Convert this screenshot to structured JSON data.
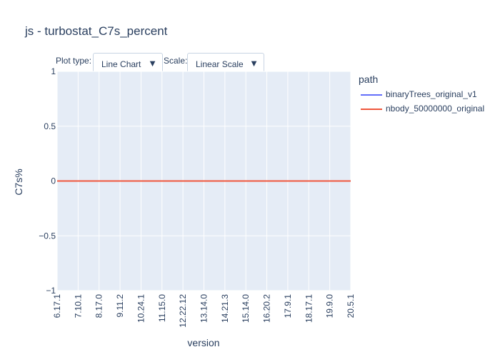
{
  "controls": {
    "plot_type_label": "Plot type:",
    "plot_type_value": "Line Chart",
    "scale_label": "Scale:",
    "scale_value": "Linear Scale",
    "arrow": "▼"
  },
  "legend": {
    "title": "path"
  },
  "colors": {
    "plot_bg": "#E5ECF6",
    "grid": "#ffffff"
  },
  "chart_data": {
    "type": "line",
    "title": "js - turbostat_C7s_percent",
    "xlabel": "version",
    "ylabel": "C7s%",
    "ylim": [
      -1,
      1
    ],
    "yticks": [
      1,
      0.5,
      0,
      -0.5,
      -1
    ],
    "ytick_labels": [
      "1",
      "0.5",
      "0",
      "−0.5",
      "−1"
    ],
    "categories": [
      "6.17.1",
      "7.10.1",
      "8.17.0",
      "9.11.2",
      "10.24.1",
      "11.15.0",
      "12.22.12",
      "13.14.0",
      "14.21.3",
      "15.14.0",
      "16.20.2",
      "17.9.1",
      "18.17.1",
      "19.9.0",
      "20.5.1"
    ],
    "series": [
      {
        "name": "binaryTrees_original_v1",
        "color": "#636efa",
        "values": [
          0,
          0,
          0,
          0,
          0,
          0,
          0,
          0,
          0,
          0,
          0,
          0,
          0,
          0,
          0
        ]
      },
      {
        "name": "nbody_50000000_original",
        "color": "#EF553B",
        "values": [
          0,
          0,
          0,
          0,
          0,
          0,
          0,
          0,
          0,
          0,
          0,
          0,
          0,
          0,
          0
        ]
      }
    ],
    "legend_position": "right",
    "grid": true
  }
}
